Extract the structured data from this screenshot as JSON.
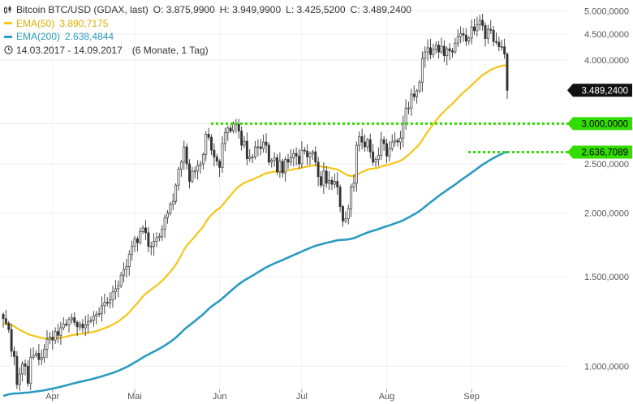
{
  "header": {
    "symbol": "Bitcoin BTC/USD (GDAX, last)",
    "open": "O: 3.875,9900",
    "high": "H: 3.949,9900",
    "low": "L: 3.425,5200",
    "close": "C: 3.489,2400",
    "ema50_label": "EMA(50)",
    "ema50_value": "3.890,7175",
    "ema200_label": "EMA(200)",
    "ema200_value": "2.638,4844",
    "period": "14.03.2017 - 14.09.2017",
    "interval": "(6 Monate, 1 Tag)"
  },
  "colors": {
    "ema50": "#f5c518",
    "ema200": "#2a9bc0",
    "candle": "#333333",
    "support": "#33dd00",
    "price_badge": "#111111"
  },
  "chart_data": {
    "type": "candlestick",
    "title": "Bitcoin BTC/USD (GDAX, last)",
    "scale": "log",
    "ylim": [
      900,
      5100
    ],
    "y_ticks": [
      1000,
      1500,
      2000,
      2500,
      3000,
      4000,
      4500,
      5000
    ],
    "y_tick_labels": [
      "1.000,0000",
      "1.500,0000",
      "2.000,0000",
      "2.500,0000",
      "3.000,0000",
      "4.000,0000",
      "4.500,0000",
      "5.000,0000"
    ],
    "x_labels": [
      "Apr",
      "Mai",
      "Jun",
      "Jul",
      "Aug",
      "Sep"
    ],
    "x_label_days": [
      18,
      48,
      79,
      109,
      140,
      171
    ],
    "num_days": 185,
    "closes": [
      1240,
      1215,
      1180,
      1070,
      1045,
      920,
      965,
      1010,
      1000,
      925,
      1040,
      1050,
      1060,
      1030,
      1040,
      1080,
      1130,
      1140,
      1125,
      1170,
      1150,
      1190,
      1210,
      1205,
      1235,
      1245,
      1220,
      1195,
      1210,
      1190,
      1205,
      1225,
      1230,
      1255,
      1265,
      1270,
      1315,
      1335,
      1330,
      1350,
      1400,
      1420,
      1440,
      1510,
      1550,
      1570,
      1660,
      1720,
      1780,
      1750,
      1840,
      1870,
      1830,
      1720,
      1720,
      1760,
      1790,
      1800,
      1860,
      1960,
      2000,
      2080,
      2110,
      2270,
      2440,
      2520,
      2700,
      2500,
      2310,
      2420,
      2420,
      2480,
      2500,
      2610,
      2860,
      2820,
      2660,
      2580,
      2530,
      2460,
      2740,
      2880,
      2940,
      2900,
      3000,
      2990,
      2900,
      2720,
      2770,
      2560,
      2580,
      2580,
      2700,
      2700,
      2680,
      2760,
      2720,
      2520,
      2540,
      2570,
      2410,
      2530,
      2400,
      2550,
      2520,
      2570,
      2620,
      2590,
      2500,
      2660,
      2650,
      2580,
      2620,
      2640,
      2520,
      2360,
      2270,
      2420,
      2290,
      2320,
      2280,
      2310,
      2250,
      2060,
      1930,
      1950,
      2040,
      2250,
      2290,
      2720,
      2830,
      2760,
      2700,
      2790,
      2640,
      2520,
      2550,
      2600,
      2790,
      2740,
      2590,
      2680,
      2760,
      2780,
      2760,
      2810,
      3000,
      3220,
      3220,
      3430,
      3390,
      3480,
      3620,
      4030,
      4150,
      4230,
      4100,
      4200,
      4280,
      4150,
      4260,
      4080,
      4210,
      4170,
      4150,
      4320,
      4450,
      4510,
      4480,
      4360,
      4420,
      4650,
      4570,
      4700,
      4790,
      4680,
      4410,
      4600,
      4580,
      4350,
      4340,
      4250,
      4250,
      4110,
      3489
    ],
    "ema50_last": 3890.7175,
    "ema200_last": 2638.4844,
    "support_lines": [
      {
        "value": 3000,
        "label": "3.000,0000"
      },
      {
        "value": 2636.7089,
        "label": "2.636,7089"
      }
    ],
    "last_price": {
      "value": 3489.24,
      "label": "3.489,2400"
    }
  }
}
